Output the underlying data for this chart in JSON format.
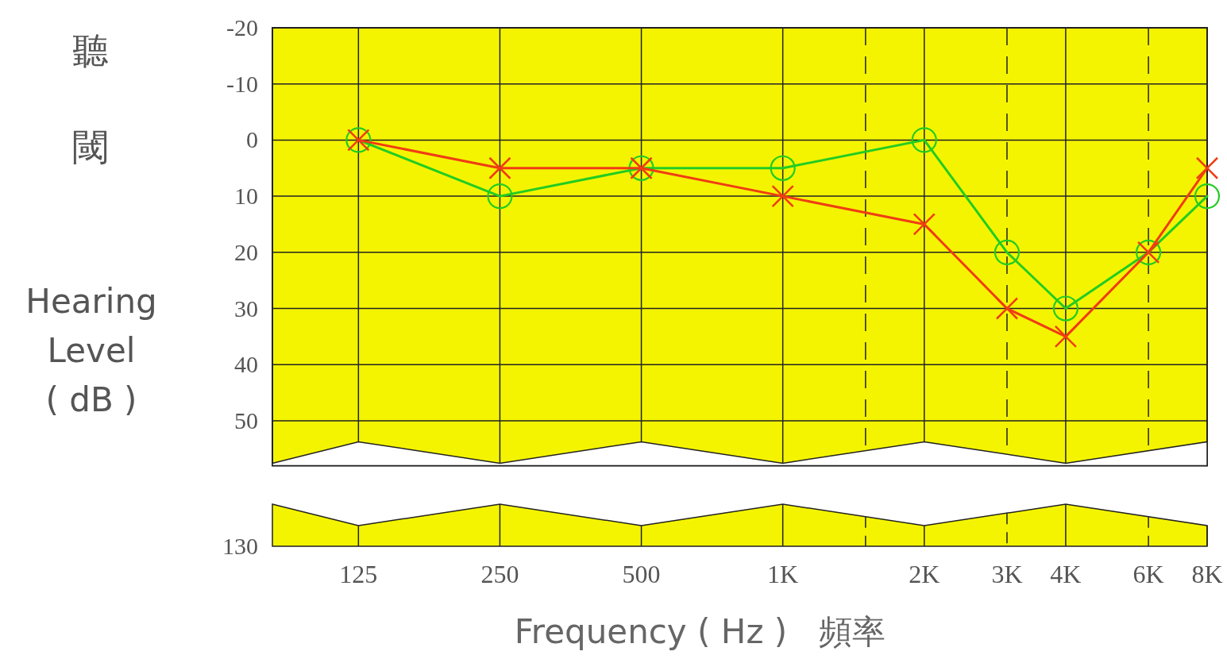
{
  "chart_data": {
    "type": "line",
    "xlabel": "Frequency ( Hz )   頻率",
    "ylabel": "聽閾\nHearing\nLevel\n( dB )",
    "log": "x",
    "grid": true,
    "line_style": "solid",
    "annotations": [
      "130"
    ],
    "xlim": [
      82,
      8000
    ],
    "xticks": [
      {
        "value": 125,
        "label": "125"
      },
      {
        "value": 250,
        "label": "250"
      },
      {
        "value": 500,
        "label": "500"
      },
      {
        "value": 1000,
        "label": "1K"
      },
      {
        "value": 1500,
        "label": null
      },
      {
        "value": 2000,
        "label": "2K"
      },
      {
        "value": 3000,
        "label": "3K"
      },
      {
        "value": 4000,
        "label": "4K"
      },
      {
        "value": 6000,
        "label": "6K"
      },
      {
        "value": 8000,
        "label": "8K"
      }
    ],
    "ylim": [
      58,
      -20
    ],
    "yticks": [
      -20,
      -10,
      0,
      10,
      20,
      30,
      40,
      50
    ],
    "series": [
      {
        "color": "#22cc22",
        "marker": "circle",
        "x": [
          125,
          250,
          500,
          1000,
          2000,
          3000,
          4000,
          6000,
          8000
        ],
        "values": [
          0,
          10,
          5,
          5,
          0,
          20,
          30,
          20,
          10
        ]
      },
      {
        "color": "#f03c14",
        "marker": "cross",
        "x": [
          125,
          250,
          500,
          1000,
          2000,
          3000,
          4000,
          6000,
          8000
        ],
        "values": [
          0,
          5,
          5,
          10,
          15,
          30,
          35,
          20,
          5
        ]
      }
    ]
  }
}
